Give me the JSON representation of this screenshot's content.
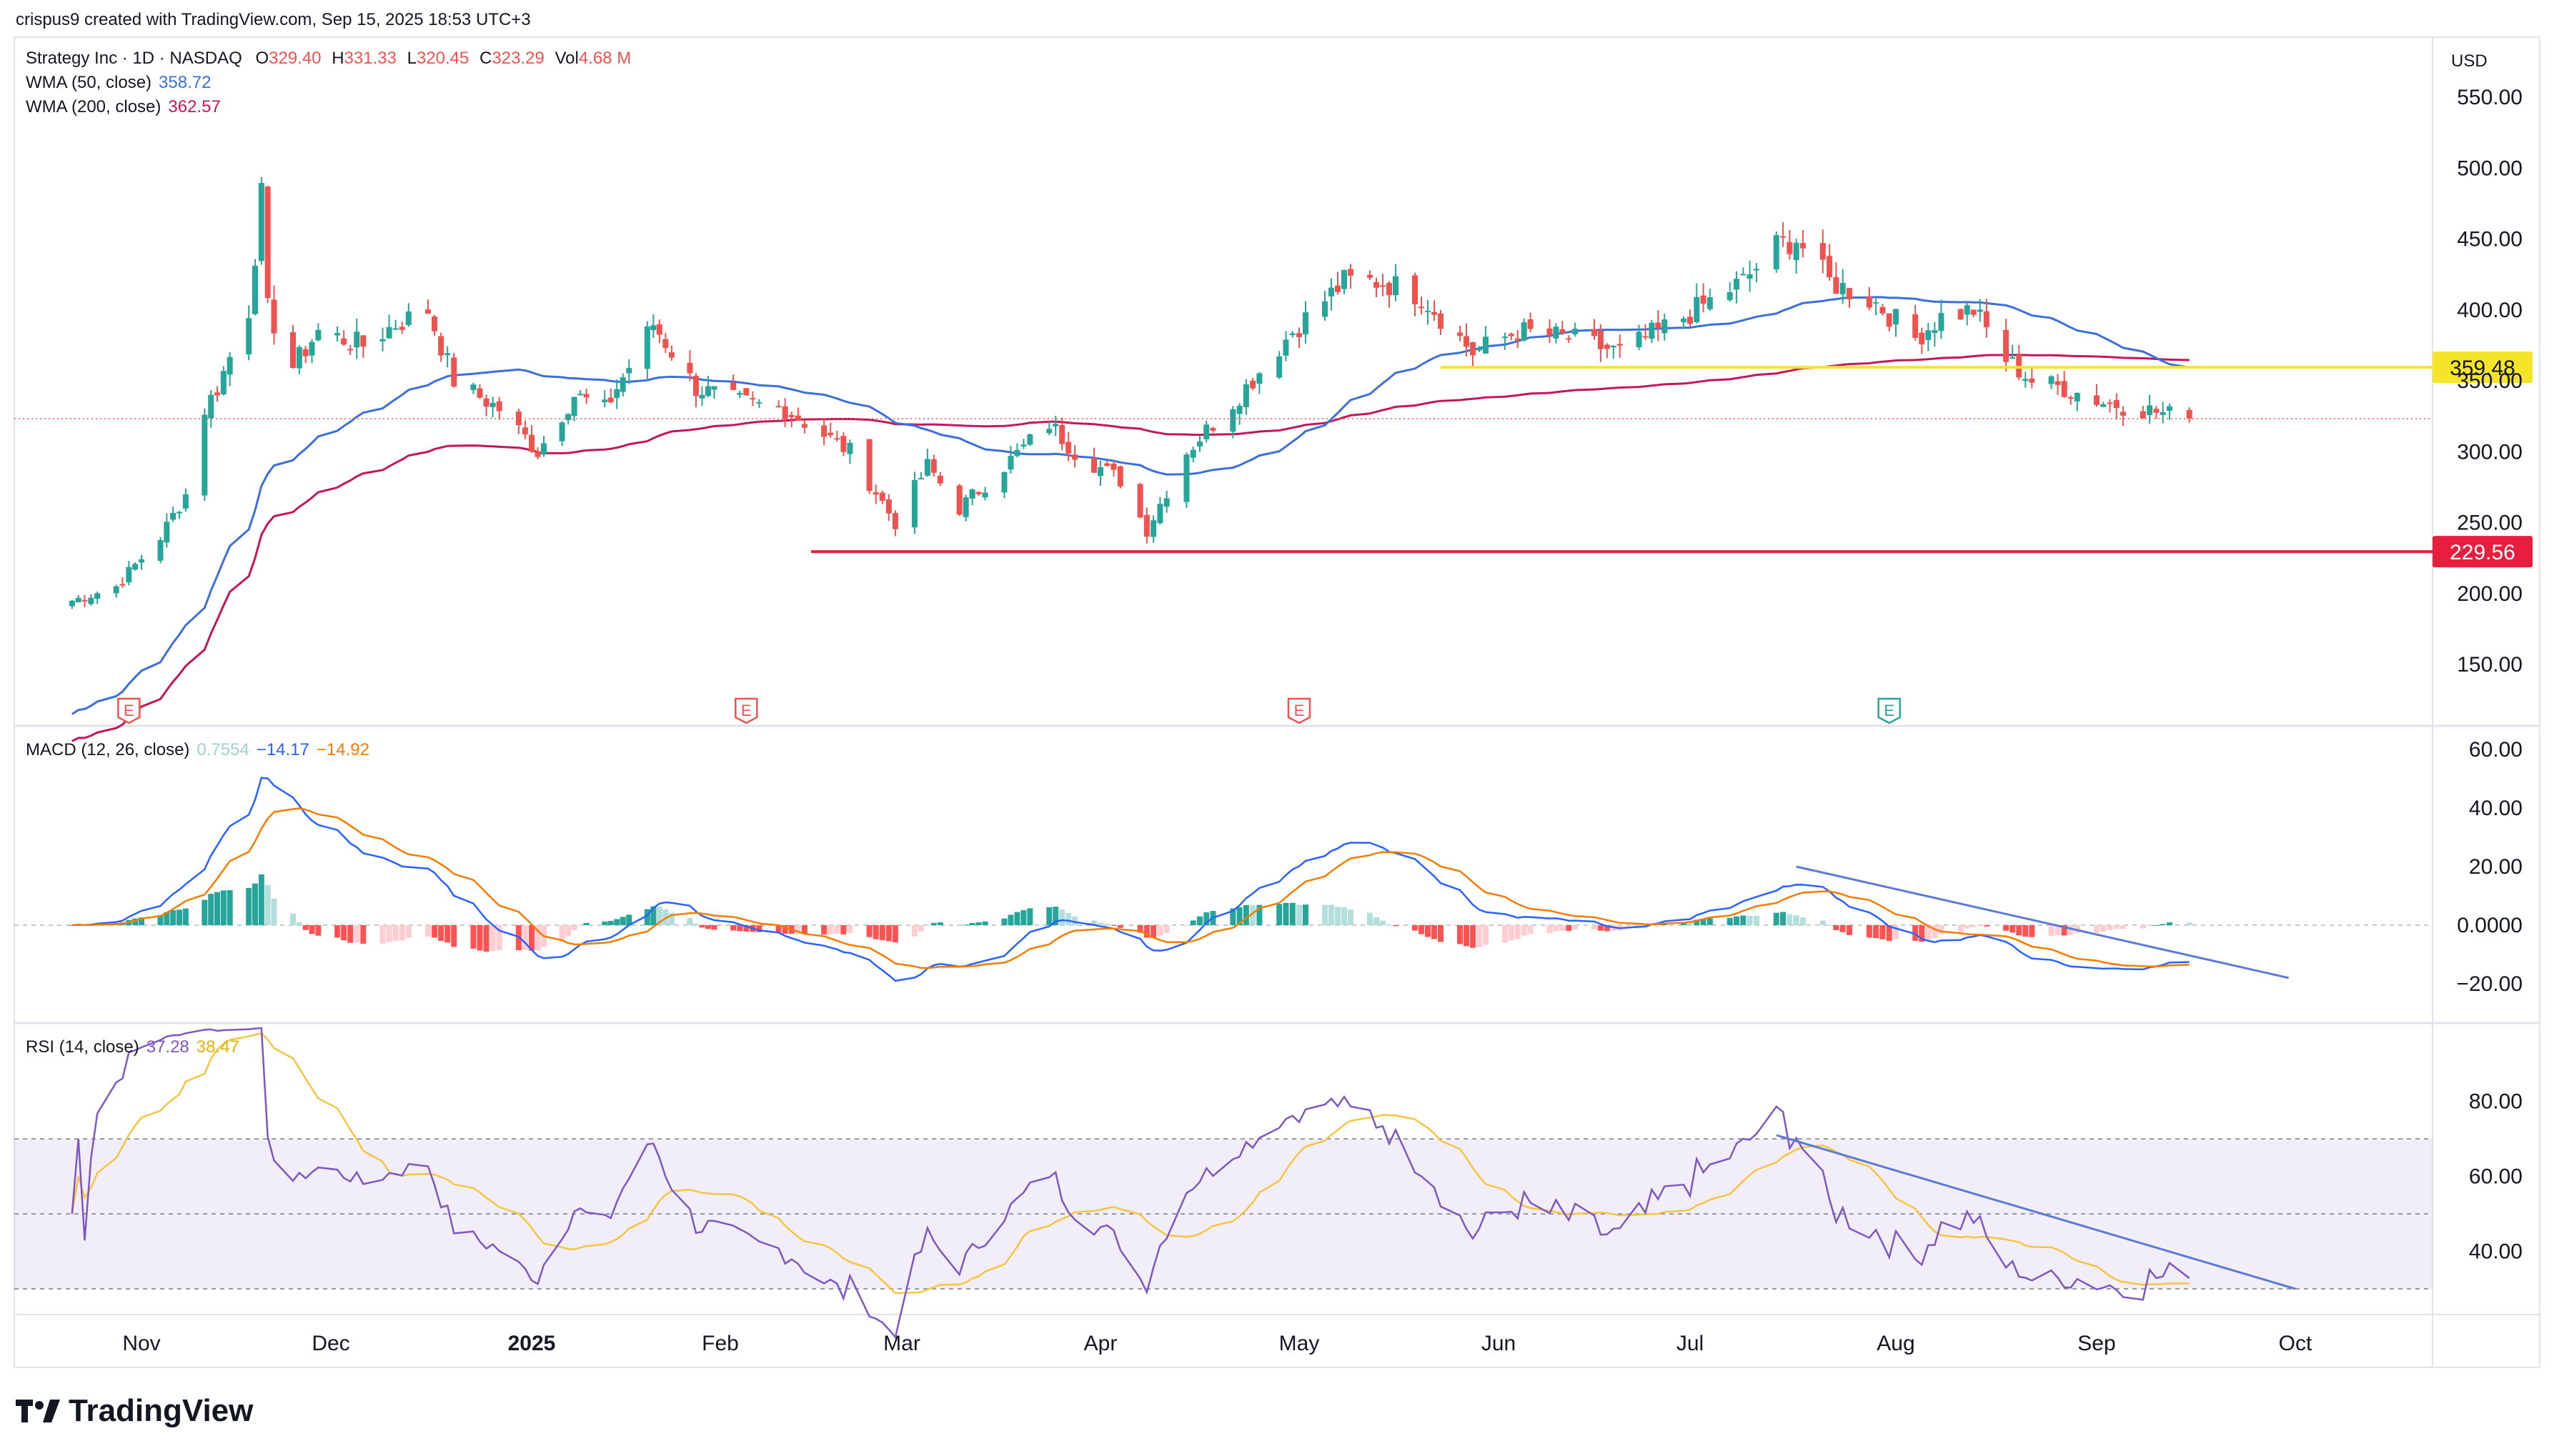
{
  "header": {
    "attribution": "crispus9 created with TradingView.com, Sep 15, 2025 18:53 UTC+3"
  },
  "symbol": {
    "name": "Strategy Inc · 1D · NASDAQ",
    "o_label": "O",
    "o": "329.40",
    "h_label": "H",
    "h": "331.33",
    "l_label": "L",
    "l": "320.45",
    "c_label": "C",
    "c": "323.29",
    "vol_label": "Vol",
    "vol": "4.68 M"
  },
  "indicators": {
    "wma50_label": "WMA (50, close)",
    "wma50_value": "358.72",
    "wma200_label": "WMA (200, close)",
    "wma200_value": "362.57",
    "macd_label": "MACD (12, 26, close)",
    "macd_hist": "0.7554",
    "macd_line": "−14.17",
    "macd_signal": "−14.92",
    "rsi_label": "RSI (14, close)",
    "rsi_value": "37.28",
    "rsi_ma": "38.47"
  },
  "currency": "USD",
  "brand": {
    "name": "TradingView"
  },
  "colors": {
    "up": "#26a69a",
    "down": "#ef5350",
    "wma50": "#3d6fd8",
    "wma200": "#c2185b",
    "macd": "#2962ff",
    "signal": "#f57c00",
    "rsi": "#7e57c2",
    "rsi_ma": "#f5c542",
    "resistance": "#f5e52a",
    "support": "#e91e3f"
  },
  "chart_data": [
    {
      "type": "candlestick",
      "title": "Strategy Inc · 1D · NASDAQ",
      "ylim": [
        115,
        575
      ],
      "y_ticks": [
        150,
        200,
        250,
        300,
        350,
        400,
        450,
        500,
        550
      ],
      "y_tick_labels": [
        "150.00",
        "200.00",
        "250.00",
        "300.00",
        "350.00",
        "400.00",
        "450.00",
        "500.00",
        "550.00"
      ],
      "x_ticks": [
        "Nov",
        "Dec",
        "2025",
        "Feb",
        "Mar",
        "Apr",
        "May",
        "Jun",
        "Jul",
        "Aug",
        "Sep",
        "Oct"
      ],
      "x_tick_dates": [
        "2024-11-01",
        "2024-12-01",
        "2025-01-01",
        "2025-02-01",
        "2025-03-01",
        "2025-04-01",
        "2025-05-01",
        "2025-06-01",
        "2025-07-01",
        "2025-08-01",
        "2025-09-01",
        "2025-10-01"
      ],
      "date_range": [
        "2024-10-21",
        "2025-09-15"
      ],
      "close_anchors": [
        [
          "2024-10-21",
          195
        ],
        [
          "2024-10-28",
          205
        ],
        [
          "2024-11-04",
          240
        ],
        [
          "2024-11-08",
          270
        ],
        [
          "2024-11-11",
          330
        ],
        [
          "2024-11-13",
          345
        ],
        [
          "2024-11-18",
          400
        ],
        [
          "2024-11-20",
          480
        ],
        [
          "2024-11-21",
          400
        ],
        [
          "2024-11-25",
          360
        ],
        [
          "2024-11-29",
          385
        ],
        [
          "2024-12-06",
          375
        ],
        [
          "2024-12-11",
          390
        ],
        [
          "2024-12-16",
          400
        ],
        [
          "2024-12-20",
          350
        ],
        [
          "2024-12-27",
          330
        ],
        [
          "2025-01-02",
          300
        ],
        [
          "2025-01-08",
          340
        ],
        [
          "2025-01-13",
          330
        ],
        [
          "2025-01-21",
          390
        ],
        [
          "2025-01-28",
          345
        ],
        [
          "2025-02-04",
          335
        ],
        [
          "2025-02-11",
          330
        ],
        [
          "2025-02-21",
          300
        ],
        [
          "2025-02-28",
          250
        ],
        [
          "2025-03-05",
          290
        ],
        [
          "2025-03-10",
          260
        ],
        [
          "2025-03-17",
          290
        ],
        [
          "2025-03-24",
          320
        ],
        [
          "2025-03-28",
          300
        ],
        [
          "2025-04-04",
          280
        ],
        [
          "2025-04-08",
          245
        ],
        [
          "2025-04-14",
          300
        ],
        [
          "2025-04-22",
          340
        ],
        [
          "2025-04-30",
          385
        ],
        [
          "2025-05-08",
          420
        ],
        [
          "2025-05-14",
          420
        ],
        [
          "2025-05-20",
          410
        ],
        [
          "2025-05-28",
          370
        ],
        [
          "2025-06-04",
          385
        ],
        [
          "2025-06-12",
          380
        ],
        [
          "2025-06-20",
          370
        ],
        [
          "2025-06-30",
          395
        ],
        [
          "2025-07-09",
          420
        ],
        [
          "2025-07-14",
          445
        ],
        [
          "2025-07-17",
          450
        ],
        [
          "2025-07-22",
          420
        ],
        [
          "2025-07-29",
          405
        ],
        [
          "2025-08-04",
          380
        ],
        [
          "2025-08-08",
          395
        ],
        [
          "2025-08-13",
          400
        ],
        [
          "2025-08-18",
          365
        ],
        [
          "2025-08-22",
          350
        ],
        [
          "2025-08-27",
          345
        ],
        [
          "2025-09-02",
          335
        ],
        [
          "2025-09-08",
          330
        ],
        [
          "2025-09-15",
          323.29
        ]
      ],
      "horizontal_levels": [
        {
          "value": 359.48,
          "label": "359.48",
          "from_date": "2025-05-23",
          "color": "#f5e52a"
        },
        {
          "value": 229.56,
          "label": "229.56",
          "from_date": "2025-02-15",
          "color": "#e91e3f"
        }
      ],
      "last_price": 323.29,
      "earnings_markers": [
        {
          "label": "E",
          "date": "2024-10-30",
          "color": "#ef5350"
        },
        {
          "label": "E",
          "date": "2025-02-05",
          "color": "#ef5350"
        },
        {
          "label": "E",
          "date": "2025-05-01",
          "color": "#ef5350"
        },
        {
          "label": "E",
          "date": "2025-07-31",
          "color": "#26a69a"
        }
      ]
    },
    {
      "type": "line",
      "title": "MACD (12, 26, close)",
      "ylim": [
        -30,
        65
      ],
      "y_ticks": [
        -20,
        0,
        20,
        40,
        60
      ],
      "y_tick_labels": [
        "−20.00",
        "0.0000",
        "20.00",
        "40.00",
        "60.00"
      ],
      "trendline": {
        "from": [
          "2025-07-17",
          20
        ],
        "to": [
          "2025-09-30",
          -18
        ]
      }
    },
    {
      "type": "line",
      "title": "RSI (14, close)",
      "ylim": [
        20,
        90
      ],
      "y_ticks": [
        40,
        60,
        80
      ],
      "y_tick_labels": [
        "40.00",
        "60.00",
        "80.00"
      ],
      "band": [
        30,
        70
      ],
      "midline": 50,
      "trendline": {
        "from": [
          "2025-07-14",
          71
        ],
        "to": [
          "2025-10-01",
          30
        ]
      }
    }
  ]
}
